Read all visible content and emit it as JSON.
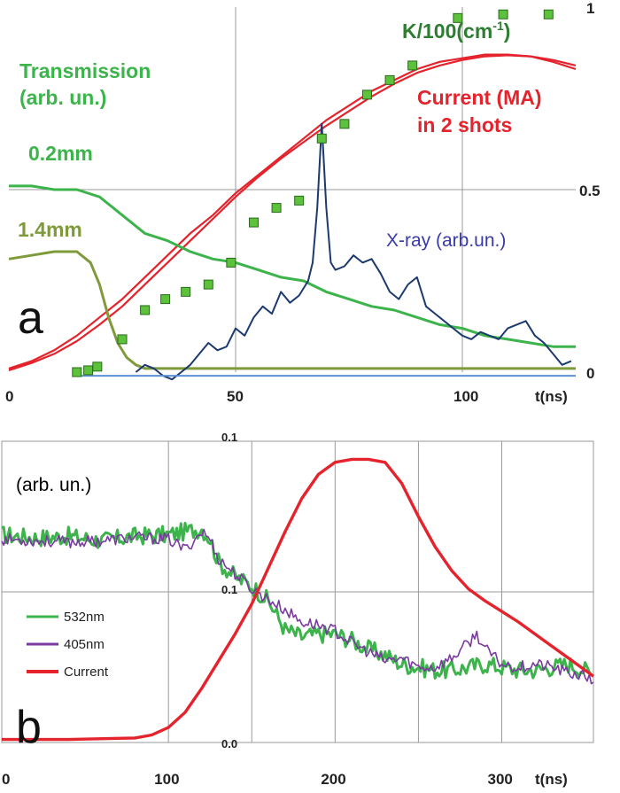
{
  "chart_data": [
    {
      "panel": "a",
      "type": "line",
      "x_axis_label": "t(ns)",
      "x_ticks": [
        "0",
        "50",
        "100"
      ],
      "xlim": [
        0,
        125
      ],
      "right_y_ticks": [
        "0",
        "0.5",
        "1"
      ],
      "ylim": [
        0,
        1
      ],
      "grid": true,
      "annotations": {
        "k_label": "K/100(cm",
        "k_label_sup": "-1",
        "k_label_end": ")",
        "transmission_line1": "Transmission",
        "transmission_line2": "(arb. un.)",
        "thin_label": "0.2mm",
        "thick_label": "1.4mm",
        "current_line1": "Current (MA)",
        "current_line2": "in 2 shots",
        "xray_label": "X-ray (arb.un.)"
      },
      "colors": {
        "current": "#e4232c",
        "transmission_02": "#3cb44b",
        "transmission_14": "#7f9a3a",
        "xray": "#1c3a6e",
        "baseline": "#5b8fd6",
        "k_marker_fill": "#5cc23c",
        "k_marker_edge": "#2a6a1c",
        "k_text": "#2e7d32",
        "transmission_text": "#3cb44b",
        "thick_text": "#7f9a3a",
        "current_text": "#e4232c",
        "xray_text": "#3a3aa8"
      },
      "series": [
        {
          "key": "current_shot1",
          "x": [
            0,
            5,
            10,
            15,
            20,
            25,
            30,
            35,
            40,
            45,
            50,
            55,
            60,
            65,
            70,
            75,
            80,
            85,
            90,
            95,
            100,
            105,
            110,
            115,
            120,
            125
          ],
          "y": [
            0.01,
            0.03,
            0.06,
            0.1,
            0.15,
            0.2,
            0.26,
            0.32,
            0.38,
            0.43,
            0.49,
            0.54,
            0.59,
            0.64,
            0.69,
            0.73,
            0.77,
            0.8,
            0.83,
            0.85,
            0.86,
            0.87,
            0.87,
            0.865,
            0.85,
            0.83
          ]
        },
        {
          "key": "current_shot2",
          "x": [
            0,
            5,
            10,
            15,
            20,
            25,
            30,
            35,
            40,
            45,
            50,
            55,
            60,
            65,
            70,
            75,
            80,
            85,
            90,
            95,
            100,
            105,
            110,
            115,
            120,
            125
          ],
          "y": [
            0.005,
            0.025,
            0.05,
            0.085,
            0.13,
            0.18,
            0.24,
            0.3,
            0.36,
            0.42,
            0.48,
            0.535,
            0.585,
            0.63,
            0.675,
            0.715,
            0.755,
            0.79,
            0.82,
            0.84,
            0.855,
            0.865,
            0.868,
            0.865,
            0.855,
            0.84
          ]
        },
        {
          "key": "transmission_02mm",
          "x": [
            0,
            5,
            10,
            15,
            20,
            25,
            30,
            35,
            40,
            45,
            50,
            55,
            60,
            65,
            70,
            75,
            80,
            85,
            90,
            95,
            100,
            105,
            110,
            115,
            120,
            125
          ],
          "y": [
            0.51,
            0.51,
            0.5,
            0.5,
            0.48,
            0.43,
            0.38,
            0.36,
            0.33,
            0.31,
            0.3,
            0.28,
            0.26,
            0.25,
            0.22,
            0.2,
            0.18,
            0.17,
            0.15,
            0.13,
            0.12,
            0.1,
            0.09,
            0.08,
            0.07,
            0.07
          ]
        },
        {
          "key": "transmission_14mm",
          "x": [
            0,
            5,
            10,
            15,
            18,
            20,
            22,
            24,
            26,
            28,
            30,
            35,
            40,
            50,
            60,
            70,
            80,
            90,
            100,
            110,
            120,
            125
          ],
          "y": [
            0.31,
            0.32,
            0.33,
            0.33,
            0.3,
            0.24,
            0.15,
            0.08,
            0.04,
            0.02,
            0.01,
            0.01,
            0.01,
            0.01,
            0.01,
            0.01,
            0.01,
            0.01,
            0.01,
            0.01,
            0.01,
            0.01
          ]
        },
        {
          "key": "xray",
          "x": [
            28,
            30,
            32,
            34,
            36,
            38,
            40,
            42,
            44,
            46,
            48,
            50,
            52,
            54,
            56,
            58,
            60,
            62,
            64,
            66,
            67,
            68,
            69,
            70,
            71,
            72,
            74,
            76,
            78,
            80,
            82,
            84,
            86,
            88,
            90,
            92,
            94,
            96,
            98,
            100,
            102,
            104,
            106,
            108,
            110,
            112,
            114,
            116,
            118,
            120,
            122,
            124
          ],
          "y": [
            0.0,
            0.02,
            0.01,
            -0.01,
            -0.02,
            0.0,
            0.02,
            0.05,
            0.08,
            0.06,
            0.07,
            0.12,
            0.1,
            0.15,
            0.18,
            0.16,
            0.22,
            0.19,
            0.21,
            0.25,
            0.3,
            0.45,
            0.68,
            0.45,
            0.3,
            0.28,
            0.29,
            0.32,
            0.3,
            0.31,
            0.27,
            0.22,
            0.2,
            0.24,
            0.26,
            0.18,
            0.16,
            0.14,
            0.12,
            0.1,
            0.09,
            0.11,
            0.1,
            0.09,
            0.12,
            0.13,
            0.14,
            0.1,
            0.08,
            0.05,
            0.02,
            0.03
          ]
        },
        {
          "key": "baseline",
          "x": [
            15,
            30,
            50,
            75,
            100,
            125
          ],
          "y": [
            -0.01,
            -0.01,
            -0.01,
            -0.01,
            -0.01,
            -0.01
          ]
        }
      ],
      "k_points": {
        "x": [
          15,
          17.5,
          19.5,
          25,
          30,
          34.5,
          39,
          44,
          49,
          54,
          59,
          64,
          69,
          74,
          79,
          84,
          89,
          99,
          109,
          119
        ],
        "y": [
          0.0,
          0.005,
          0.015,
          0.09,
          0.17,
          0.2,
          0.22,
          0.24,
          0.3,
          0.41,
          0.45,
          0.47,
          0.64,
          0.68,
          0.76,
          0.8,
          0.84,
          0.97,
          0.98,
          0.98
        ]
      }
    },
    {
      "panel": "b",
      "type": "line",
      "x_axis_label": "t(ns)",
      "x_ticks": [
        "0",
        "100",
        "200",
        "300"
      ],
      "xlim": [
        0,
        355
      ],
      "y_ticks": [
        "0.0",
        "0.1",
        "0.1"
      ],
      "ylim": [
        0,
        0.2
      ],
      "grid": true,
      "y_annotation": "(arb. un.)",
      "legend": {
        "placement": "bottom-left",
        "entries": [
          "532nm",
          "405nm",
          "Current"
        ]
      },
      "colors": {
        "nm532": "#3cb44b",
        "nm405": "#7a3aa0",
        "current": "#e4232c"
      },
      "series": [
        {
          "key": "nm532",
          "x": [
            0,
            20,
            40,
            60,
            80,
            100,
            110,
            120,
            125,
            130,
            140,
            150,
            160,
            170,
            180,
            190,
            200,
            210,
            220,
            230,
            240,
            250,
            260,
            270,
            280,
            290,
            300,
            310,
            320,
            330,
            340,
            350,
            355
          ],
          "y": [
            0.138,
            0.136,
            0.137,
            0.134,
            0.137,
            0.138,
            0.14,
            0.142,
            0.135,
            0.12,
            0.11,
            0.104,
            0.094,
            0.075,
            0.07,
            0.072,
            0.072,
            0.068,
            0.062,
            0.058,
            0.052,
            0.05,
            0.048,
            0.048,
            0.05,
            0.052,
            0.05,
            0.048,
            0.048,
            0.05,
            0.052,
            0.048,
            0.044
          ]
        },
        {
          "key": "nm405",
          "x": [
            0,
            20,
            40,
            60,
            80,
            100,
            110,
            120,
            125,
            130,
            140,
            150,
            160,
            170,
            180,
            190,
            200,
            210,
            220,
            230,
            240,
            250,
            260,
            270,
            280,
            285,
            290,
            300,
            310,
            320,
            330,
            340,
            350,
            355
          ],
          "y": [
            0.135,
            0.134,
            0.133,
            0.134,
            0.136,
            0.135,
            0.128,
            0.14,
            0.135,
            0.122,
            0.112,
            0.102,
            0.095,
            0.088,
            0.08,
            0.078,
            0.074,
            0.066,
            0.06,
            0.054,
            0.056,
            0.05,
            0.05,
            0.056,
            0.066,
            0.072,
            0.062,
            0.052,
            0.05,
            0.052,
            0.05,
            0.046,
            0.044,
            0.04
          ]
        },
        {
          "key": "current",
          "x": [
            0,
            40,
            80,
            90,
            100,
            110,
            120,
            130,
            140,
            150,
            160,
            170,
            180,
            190,
            200,
            210,
            220,
            230,
            240,
            250,
            260,
            270,
            280,
            290,
            300,
            310,
            320,
            330,
            340,
            350,
            355
          ],
          "y": [
            0.002,
            0.002,
            0.003,
            0.005,
            0.01,
            0.02,
            0.036,
            0.054,
            0.072,
            0.092,
            0.116,
            0.14,
            0.162,
            0.178,
            0.186,
            0.188,
            0.188,
            0.186,
            0.172,
            0.15,
            0.13,
            0.114,
            0.102,
            0.094,
            0.087,
            0.08,
            0.072,
            0.064,
            0.056,
            0.048,
            0.044
          ]
        }
      ]
    }
  ]
}
